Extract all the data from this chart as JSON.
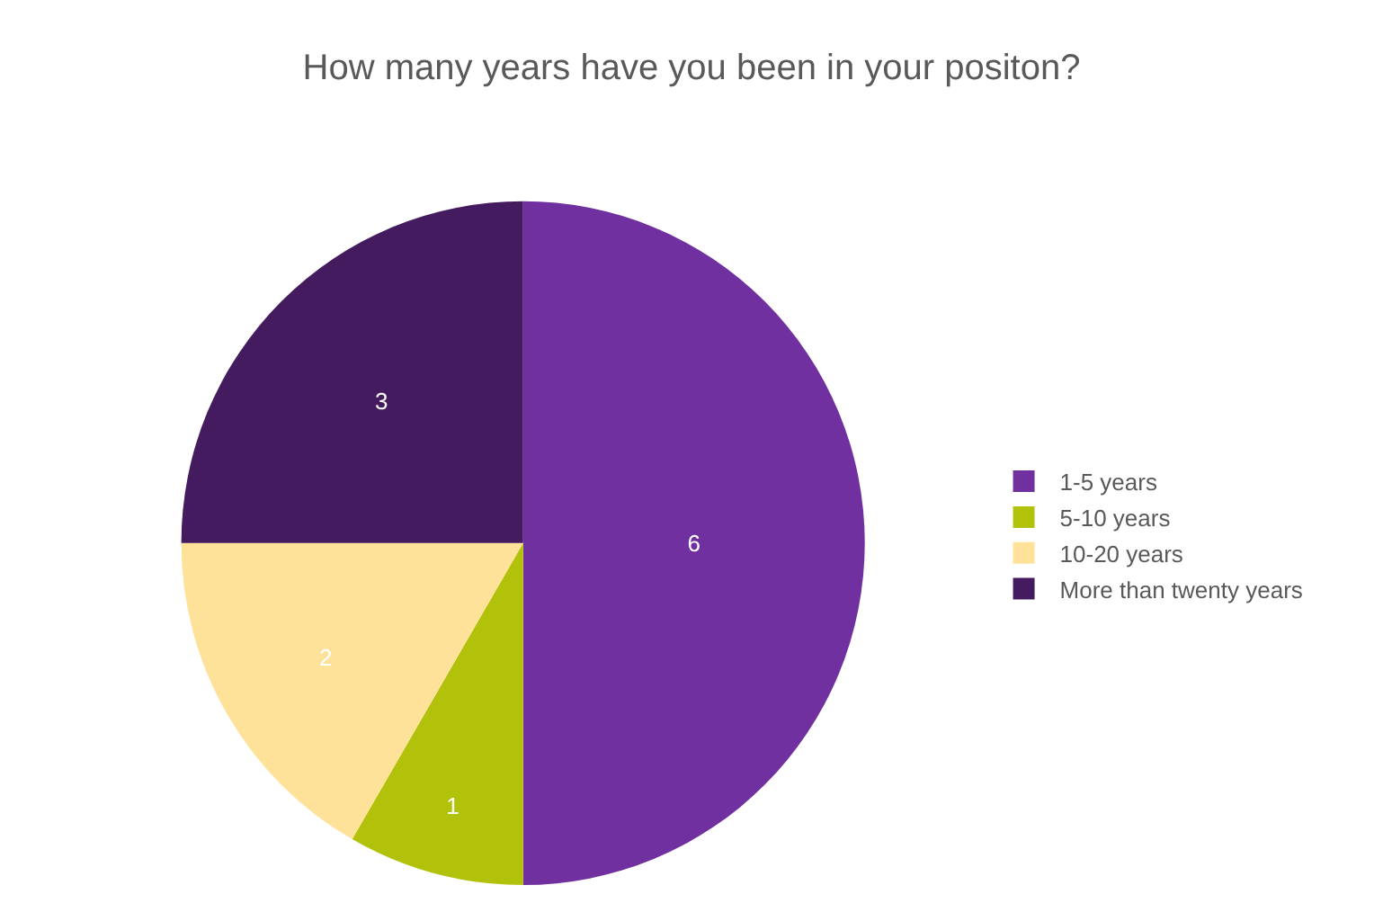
{
  "chart_data": {
    "type": "pie",
    "title": "How many years have you been in your positon?",
    "categories": [
      "1-5 years",
      "5-10 years",
      "10-20 years",
      "More than twenty years"
    ],
    "values": [
      6,
      1,
      2,
      3
    ],
    "colors": [
      "#7030a0",
      "#b2c20b",
      "#ffe29a",
      "#441b5e"
    ],
    "data_labels": true,
    "legend": "right"
  }
}
